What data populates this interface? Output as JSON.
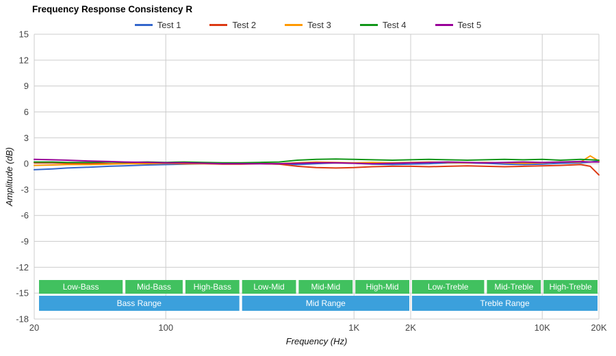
{
  "chart_data": {
    "type": "line",
    "title": "Frequency Response Consistency R",
    "xlabel": "Frequency (Hz)",
    "ylabel": "Amplitude (dB)",
    "x_scale": "log",
    "xlim": [
      20,
      20000
    ],
    "ylim": [
      -18,
      15
    ],
    "grid": true,
    "grid_color": "#cccccc",
    "legend_position": "top",
    "y_ticks": [
      15,
      12,
      9,
      6,
      3,
      0,
      -3,
      -6,
      -9,
      -12,
      -15,
      -18
    ],
    "x_ticks": [
      {
        "v": 20,
        "label": "20"
      },
      {
        "v": 100,
        "label": "100"
      },
      {
        "v": 1000,
        "label": "1K"
      },
      {
        "v": 2000,
        "label": "2K"
      },
      {
        "v": 10000,
        "label": "10K"
      },
      {
        "v": 20000,
        "label": "20K"
      }
    ],
    "x": [
      20,
      25,
      30,
      40,
      50,
      60,
      80,
      100,
      125,
      160,
      200,
      250,
      315,
      400,
      500,
      630,
      800,
      1000,
      1250,
      1600,
      2000,
      2500,
      3150,
      4000,
      5000,
      6300,
      8000,
      10000,
      12500,
      16000,
      18000,
      20000
    ],
    "series": [
      {
        "name": "Test 1",
        "color": "#3366cc",
        "values": [
          -0.7,
          -0.6,
          -0.5,
          -0.4,
          -0.3,
          -0.25,
          -0.15,
          -0.1,
          -0.05,
          0,
          0,
          0,
          0,
          -0.05,
          -0.1,
          0,
          0.1,
          0.05,
          -0.05,
          -0.1,
          -0.05,
          0,
          0.1,
          0.1,
          0.05,
          -0.05,
          -0.1,
          -0.05,
          0.05,
          0.1,
          0.2,
          0.3
        ]
      },
      {
        "name": "Test 2",
        "color": "#dc3912",
        "values": [
          0.1,
          0.1,
          0.05,
          0.05,
          0,
          0,
          0.05,
          0.05,
          0,
          0,
          -0.05,
          -0.05,
          0,
          -0.05,
          -0.3,
          -0.45,
          -0.5,
          -0.45,
          -0.35,
          -0.3,
          -0.3,
          -0.35,
          -0.3,
          -0.25,
          -0.3,
          -0.35,
          -0.3,
          -0.25,
          -0.2,
          -0.1,
          -0.3,
          -1.3
        ]
      },
      {
        "name": "Test 3",
        "color": "#ff9900",
        "values": [
          -0.2,
          -0.15,
          -0.1,
          -0.1,
          -0.05,
          0,
          0,
          0.05,
          0.05,
          0,
          0,
          0,
          0.05,
          0,
          0.1,
          0.2,
          0.15,
          0.1,
          0.15,
          0.1,
          0.15,
          0.2,
          0.15,
          0.1,
          0.15,
          0.1,
          0.05,
          0.1,
          0.2,
          0.2,
          0.9,
          0.3
        ]
      },
      {
        "name": "Test 4",
        "color": "#109618",
        "values": [
          0.2,
          0.2,
          0.15,
          0.15,
          0.2,
          0.15,
          0.2,
          0.15,
          0.2,
          0.15,
          0.1,
          0.1,
          0.15,
          0.2,
          0.4,
          0.5,
          0.55,
          0.5,
          0.45,
          0.4,
          0.45,
          0.5,
          0.45,
          0.4,
          0.45,
          0.5,
          0.45,
          0.5,
          0.4,
          0.5,
          0.45,
          0.4
        ]
      },
      {
        "name": "Test 5",
        "color": "#990099",
        "values": [
          0.5,
          0.45,
          0.4,
          0.3,
          0.25,
          0.2,
          0.15,
          0.1,
          0.1,
          0.05,
          0,
          0,
          0,
          0,
          0.05,
          0.1,
          0.1,
          0.05,
          0,
          0.05,
          0.1,
          0.15,
          0.2,
          0.15,
          0.1,
          0.15,
          0.2,
          0.15,
          0.2,
          0.25,
          0.2,
          0.2
        ]
      }
    ],
    "bands": {
      "sub_color": "#41c15f",
      "main_color": "#3ba0dc",
      "text_color": "#ffffff",
      "sub_ranges": [
        {
          "label": "Low-Bass",
          "from": 20,
          "to": 60
        },
        {
          "label": "Mid-Bass",
          "from": 60,
          "to": 125
        },
        {
          "label": "High-Bass",
          "from": 125,
          "to": 250
        },
        {
          "label": "Low-Mid",
          "from": 250,
          "to": 500
        },
        {
          "label": "Mid-Mid",
          "from": 500,
          "to": 1000
        },
        {
          "label": "High-Mid",
          "from": 1000,
          "to": 2000
        },
        {
          "label": "Low-Treble",
          "from": 2000,
          "to": 5000
        },
        {
          "label": "Mid-Treble",
          "from": 5000,
          "to": 10000
        },
        {
          "label": "High-Treble",
          "from": 10000,
          "to": 20000
        }
      ],
      "main_ranges": [
        {
          "label": "Bass Range",
          "from": 20,
          "to": 250
        },
        {
          "label": "Mid Range",
          "from": 250,
          "to": 2000
        },
        {
          "label": "Treble Range",
          "from": 2000,
          "to": 20000
        }
      ]
    }
  }
}
